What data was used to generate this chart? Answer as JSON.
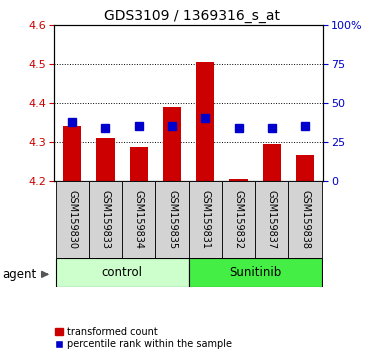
{
  "title": "GDS3109 / 1369316_s_at",
  "samples": [
    "GSM159830",
    "GSM159833",
    "GSM159834",
    "GSM159835",
    "GSM159831",
    "GSM159832",
    "GSM159837",
    "GSM159838"
  ],
  "red_values": [
    4.34,
    4.31,
    4.285,
    4.39,
    4.505,
    4.205,
    4.295,
    4.265
  ],
  "blue_values": [
    4.35,
    4.335,
    4.34,
    4.34,
    4.36,
    4.335,
    4.335,
    4.34
  ],
  "ylim_left": [
    4.2,
    4.6
  ],
  "ylim_right": [
    0,
    100
  ],
  "yticks_left": [
    4.2,
    4.3,
    4.4,
    4.5,
    4.6
  ],
  "yticks_right": [
    0,
    25,
    50,
    75,
    100
  ],
  "ytick_labels_right": [
    "0",
    "25",
    "50",
    "75",
    "100%"
  ],
  "bar_base": 4.2,
  "bar_width": 0.55,
  "red_color": "#cc0000",
  "blue_color": "#0000cc",
  "blue_marker_size": 6,
  "control_bg": "#ccffcc",
  "sunitinib_bg": "#44ee44",
  "sample_bg": "#d3d3d3",
  "legend_red": "transformed count",
  "legend_blue": "percentile rank within the sample",
  "title_fontsize": 10
}
